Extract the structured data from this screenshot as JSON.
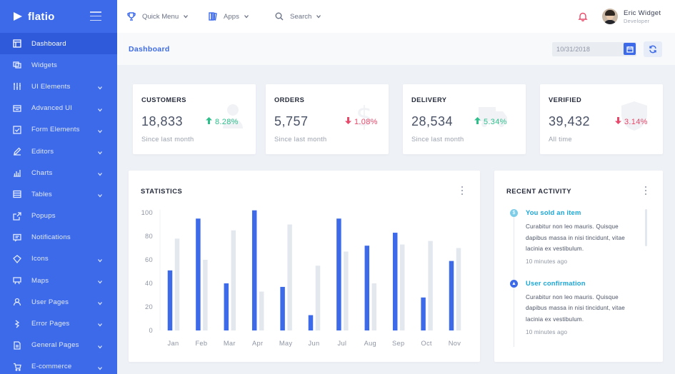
{
  "brand": {
    "name": "flatio"
  },
  "sidebar": {
    "items": [
      {
        "label": "Dashboard",
        "icon": "dashboard-icon",
        "active": true,
        "chevron": false
      },
      {
        "label": "Widgets",
        "icon": "widgets-icon",
        "active": false,
        "chevron": false
      },
      {
        "label": "UI Elements",
        "icon": "ui-elements-icon",
        "active": false,
        "chevron": true
      },
      {
        "label": "Advanced UI",
        "icon": "advanced-ui-icon",
        "active": false,
        "chevron": true
      },
      {
        "label": "Form Elements",
        "icon": "form-elements-icon",
        "active": false,
        "chevron": true
      },
      {
        "label": "Editors",
        "icon": "editors-icon",
        "active": false,
        "chevron": true
      },
      {
        "label": "Charts",
        "icon": "charts-icon",
        "active": false,
        "chevron": true
      },
      {
        "label": "Tables",
        "icon": "tables-icon",
        "active": false,
        "chevron": true
      },
      {
        "label": "Popups",
        "icon": "popups-icon",
        "active": false,
        "chevron": false
      },
      {
        "label": "Notifications",
        "icon": "notifications-icon",
        "active": false,
        "chevron": false
      },
      {
        "label": "Icons",
        "icon": "icons-icon",
        "active": false,
        "chevron": true
      },
      {
        "label": "Maps",
        "icon": "maps-icon",
        "active": false,
        "chevron": true
      },
      {
        "label": "User Pages",
        "icon": "user-pages-icon",
        "active": false,
        "chevron": true
      },
      {
        "label": "Error Pages",
        "icon": "error-pages-icon",
        "active": false,
        "chevron": true
      },
      {
        "label": "General Pages",
        "icon": "general-pages-icon",
        "active": false,
        "chevron": true
      },
      {
        "label": "E-commerce",
        "icon": "e-commerce-icon",
        "active": false,
        "chevron": true
      }
    ]
  },
  "topbar": {
    "quick_menu": "Quick Menu",
    "apps": "Apps",
    "search": "Search",
    "user_name": "Eric Widget",
    "user_role": "Developer"
  },
  "subheader": {
    "title": "Dashboard",
    "date_placeholder": "10/31/2018"
  },
  "stats": [
    {
      "title": "CUSTOMERS",
      "value": "18,833",
      "change": "8.28%",
      "direction": "up",
      "sub": "Since last month",
      "icon": "user-icon"
    },
    {
      "title": "ORDERS",
      "value": "5,757",
      "change": "1.08%",
      "direction": "down",
      "sub": "Since last month",
      "icon": "dollar-icon"
    },
    {
      "title": "DELIVERY",
      "value": "28,534",
      "change": "5.34%",
      "direction": "up",
      "sub": "Since last month",
      "icon": "truck-icon"
    },
    {
      "title": "VERIFIED",
      "value": "39,432",
      "change": "3.14%",
      "direction": "down",
      "sub": "All time",
      "icon": "shield-icon"
    }
  ],
  "statistics": {
    "title": "STATISTICS",
    "chart_data": {
      "type": "bar",
      "categories": [
        "Jan",
        "Feb",
        "Mar",
        "Apr",
        "May",
        "Jun",
        "Jul",
        "Aug",
        "Sep",
        "Oct",
        "Nov"
      ],
      "series": [
        {
          "values": [
            51,
            95,
            40,
            102,
            37,
            13,
            95,
            72,
            83,
            28,
            59
          ],
          "color": "#3c6ae9"
        },
        {
          "values": [
            78,
            60,
            85,
            33,
            90,
            55,
            67,
            40,
            73,
            76,
            70
          ],
          "color": "#e3e8ef"
        }
      ],
      "ylim": [
        0,
        100
      ],
      "yticks": [
        0,
        20,
        40,
        60,
        80,
        100
      ],
      "xlabel": "",
      "ylabel": ""
    }
  },
  "activity": {
    "title": "RECENT ACTIVITY",
    "items": [
      {
        "title": "You sold an item",
        "text": "Curabitur non leo mauris. Quisque dapibus massa in nisi tincidunt, vitae lacinia ex vestibulum.",
        "time": "10 minutes ago",
        "dot_color": "#7dcde8",
        "dot_icon": "$"
      },
      {
        "title": "User confirmation",
        "text": "Curabitur non leo mauris. Quisque dapibus massa in nisi tincidunt, vitae lacinia ex vestibulum.",
        "time": "10 minutes ago",
        "dot_color": "#3c6ae9",
        "dot_icon": "▲"
      }
    ]
  }
}
